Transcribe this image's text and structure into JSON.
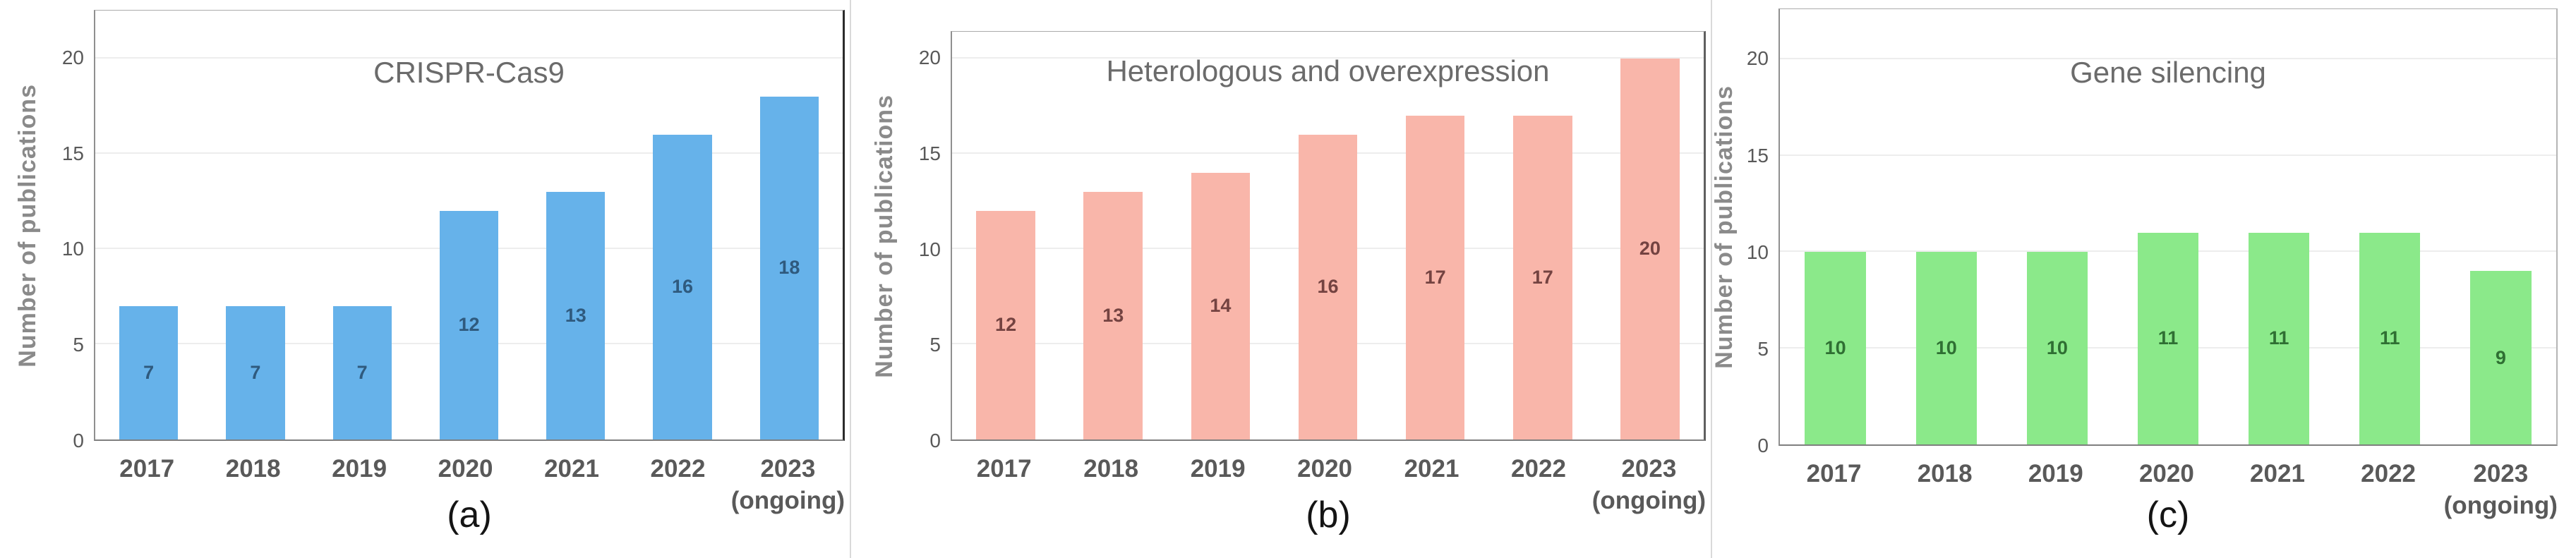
{
  "figure": {
    "ylabel": "Number of publications",
    "captions": [
      "(a)",
      "(b)",
      "(c)"
    ]
  },
  "chart_data": [
    {
      "type": "bar",
      "title": "CRISPR-Cas9",
      "panel_caption": "(a)",
      "ylabel": "Number of publications",
      "categories": [
        "2017",
        "2018",
        "2019",
        "2020",
        "2021",
        "2022",
        "2023 (ongoing)"
      ],
      "x_tick_lines": [
        [
          "2017"
        ],
        [
          "2018"
        ],
        [
          "2019"
        ],
        [
          "2020"
        ],
        [
          "2021"
        ],
        [
          "2022"
        ],
        [
          "2023",
          "(ongoing)"
        ]
      ],
      "values": [
        7,
        7,
        7,
        12,
        13,
        16,
        18
      ],
      "yticks": [
        0,
        5,
        10,
        15,
        20
      ],
      "ylim": [
        0,
        22.5
      ],
      "grid": true,
      "legend": false,
      "bar_color": "#66b2ea",
      "label_color": "#2f5a7e"
    },
    {
      "type": "bar",
      "title": "Heterologous and overexpression",
      "panel_caption": "(b)",
      "ylabel": "Number of publications",
      "categories": [
        "2017",
        "2018",
        "2019",
        "2020",
        "2021",
        "2022",
        "2023 (ongoing)"
      ],
      "x_tick_lines": [
        [
          "2017"
        ],
        [
          "2018"
        ],
        [
          "2019"
        ],
        [
          "2020"
        ],
        [
          "2021"
        ],
        [
          "2022"
        ],
        [
          "2023",
          "(ongoing)"
        ]
      ],
      "values": [
        12,
        13,
        14,
        16,
        17,
        17,
        20
      ],
      "yticks": [
        0,
        5,
        10,
        15,
        20
      ],
      "ylim": [
        0,
        21.4
      ],
      "grid": true,
      "legend": false,
      "bar_color": "#f9b6aa",
      "label_color": "#744341"
    },
    {
      "type": "bar",
      "title": "Gene silencing",
      "panel_caption": "(c)",
      "ylabel": "Number of publications",
      "categories": [
        "2017",
        "2018",
        "2019",
        "2020",
        "2021",
        "2022",
        "2023 (ongoing)"
      ],
      "x_tick_lines": [
        [
          "2017"
        ],
        [
          "2018"
        ],
        [
          "2019"
        ],
        [
          "2020"
        ],
        [
          "2021"
        ],
        [
          "2022"
        ],
        [
          "2023",
          "(ongoing)"
        ]
      ],
      "values": [
        10,
        10,
        10,
        11,
        11,
        11,
        9
      ],
      "yticks": [
        0,
        5,
        10,
        15,
        20
      ],
      "ylim": [
        0,
        22.6
      ],
      "grid": true,
      "legend": false,
      "bar_color": "#8be98a",
      "label_color": "#2f6f33"
    }
  ]
}
